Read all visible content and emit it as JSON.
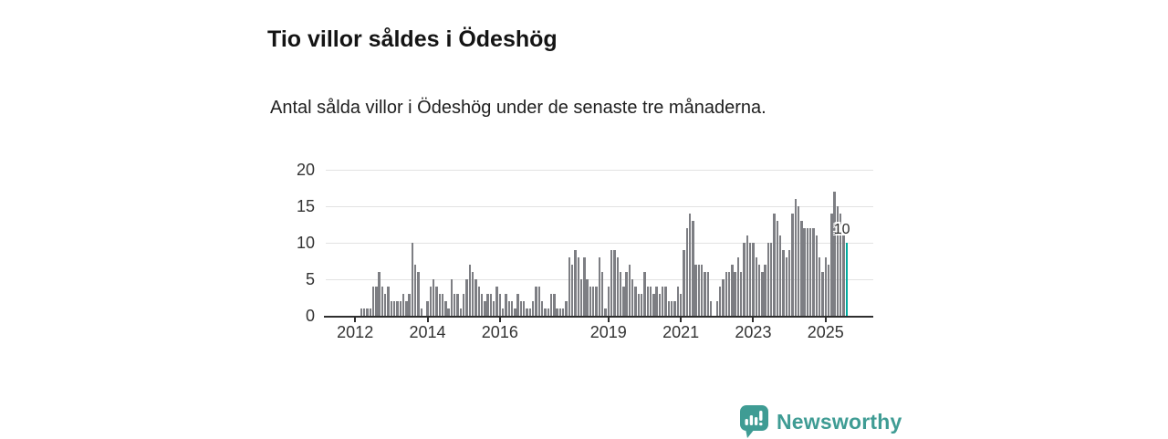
{
  "title": "Tio villor såldes i Ödeshög",
  "subtitle": "Antal sålda villor i Ödeshög under de senaste tre månaderna.",
  "branding": {
    "logo_text": "Newsworthy",
    "logo_icon": "speech-bubble-bar-chart-icon"
  },
  "colors": {
    "bar": "#7d7e83",
    "highlight": "#00ab9e",
    "gridline": "#e2e2e2",
    "axis": "#2e2e2e",
    "axis_label": "#333333",
    "title_text": "#141414",
    "logo_teal": "#3f9c94",
    "background": "#ffffff"
  },
  "chart_data": {
    "type": "bar",
    "title": "Tio villor såldes i Ödeshög",
    "subtitle": "Antal sålda villor i Ödeshög under de senaste tre månaderna.",
    "ylabel": "",
    "xlabel": "",
    "frequency": "monthly",
    "x_start": "2012-01",
    "x_end": "2025-08",
    "ylim": [
      0,
      20
    ],
    "y_ticks": [
      0,
      5,
      10,
      15,
      20
    ],
    "grid": "horizontal",
    "x_tick_labels": [
      "2012",
      "2014",
      "2016",
      "2019",
      "2021",
      "2023",
      "2025"
    ],
    "x_tick_month_indices": [
      0,
      24,
      48,
      84,
      108,
      132,
      156
    ],
    "values": [
      0,
      0,
      1,
      1,
      1,
      1,
      4,
      4,
      6,
      4,
      3,
      4,
      2,
      2,
      2,
      2,
      3,
      2,
      3,
      10,
      7,
      6,
      1,
      0,
      2,
      4,
      5,
      4,
      3,
      3,
      2,
      1,
      5,
      3,
      3,
      1,
      3,
      5,
      7,
      6,
      5,
      4,
      3,
      2,
      3,
      3,
      2,
      4,
      3,
      1,
      3,
      2,
      2,
      1,
      3,
      2,
      2,
      1,
      1,
      2,
      4,
      4,
      2,
      1,
      1,
      3,
      3,
      1,
      1,
      1,
      2,
      8,
      7,
      9,
      8,
      5,
      8,
      5,
      4,
      4,
      4,
      8,
      6,
      1,
      4,
      9,
      9,
      8,
      6,
      4,
      6,
      7,
      5,
      4,
      3,
      3,
      6,
      4,
      4,
      3,
      4,
      3,
      4,
      4,
      2,
      2,
      2,
      4,
      3,
      9,
      12,
      14,
      13,
      7,
      7,
      7,
      6,
      6,
      2,
      0,
      2,
      4,
      5,
      6,
      6,
      7,
      6,
      8,
      6,
      10,
      11,
      10,
      10,
      8,
      7,
      6,
      7,
      10,
      10,
      14,
      13,
      11,
      9,
      8,
      9,
      14,
      16,
      15,
      13,
      12,
      12,
      12,
      12,
      11,
      8,
      6,
      8,
      7,
      14,
      17,
      15,
      14,
      11,
      10
    ],
    "highlight_last": true,
    "annotation": {
      "text": "10",
      "value": 10,
      "target": "last-bar"
    }
  }
}
